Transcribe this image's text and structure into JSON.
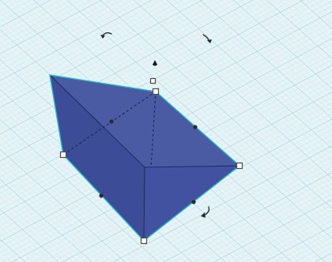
{
  "workplane": {
    "background": "#e6f4f7",
    "grid_minor": "#c3e0e7",
    "grid_major": "#9ccbd8"
  },
  "shape": {
    "name": "wedge",
    "selected": true,
    "face_top": "#4a5aa3",
    "face_left": "#3f4f9a",
    "face_right": "#41519c",
    "outline": "#1e2c5c",
    "selection_outline": "#22b8cf",
    "hidden_edge": "#1a1f3d"
  },
  "icons": {
    "rotate_left": "rotate-arc-icon",
    "rotate_right": "rotate-arc-icon",
    "rotate_bottom": "rotate-arc-icon",
    "lift": "lift-cone-icon"
  }
}
